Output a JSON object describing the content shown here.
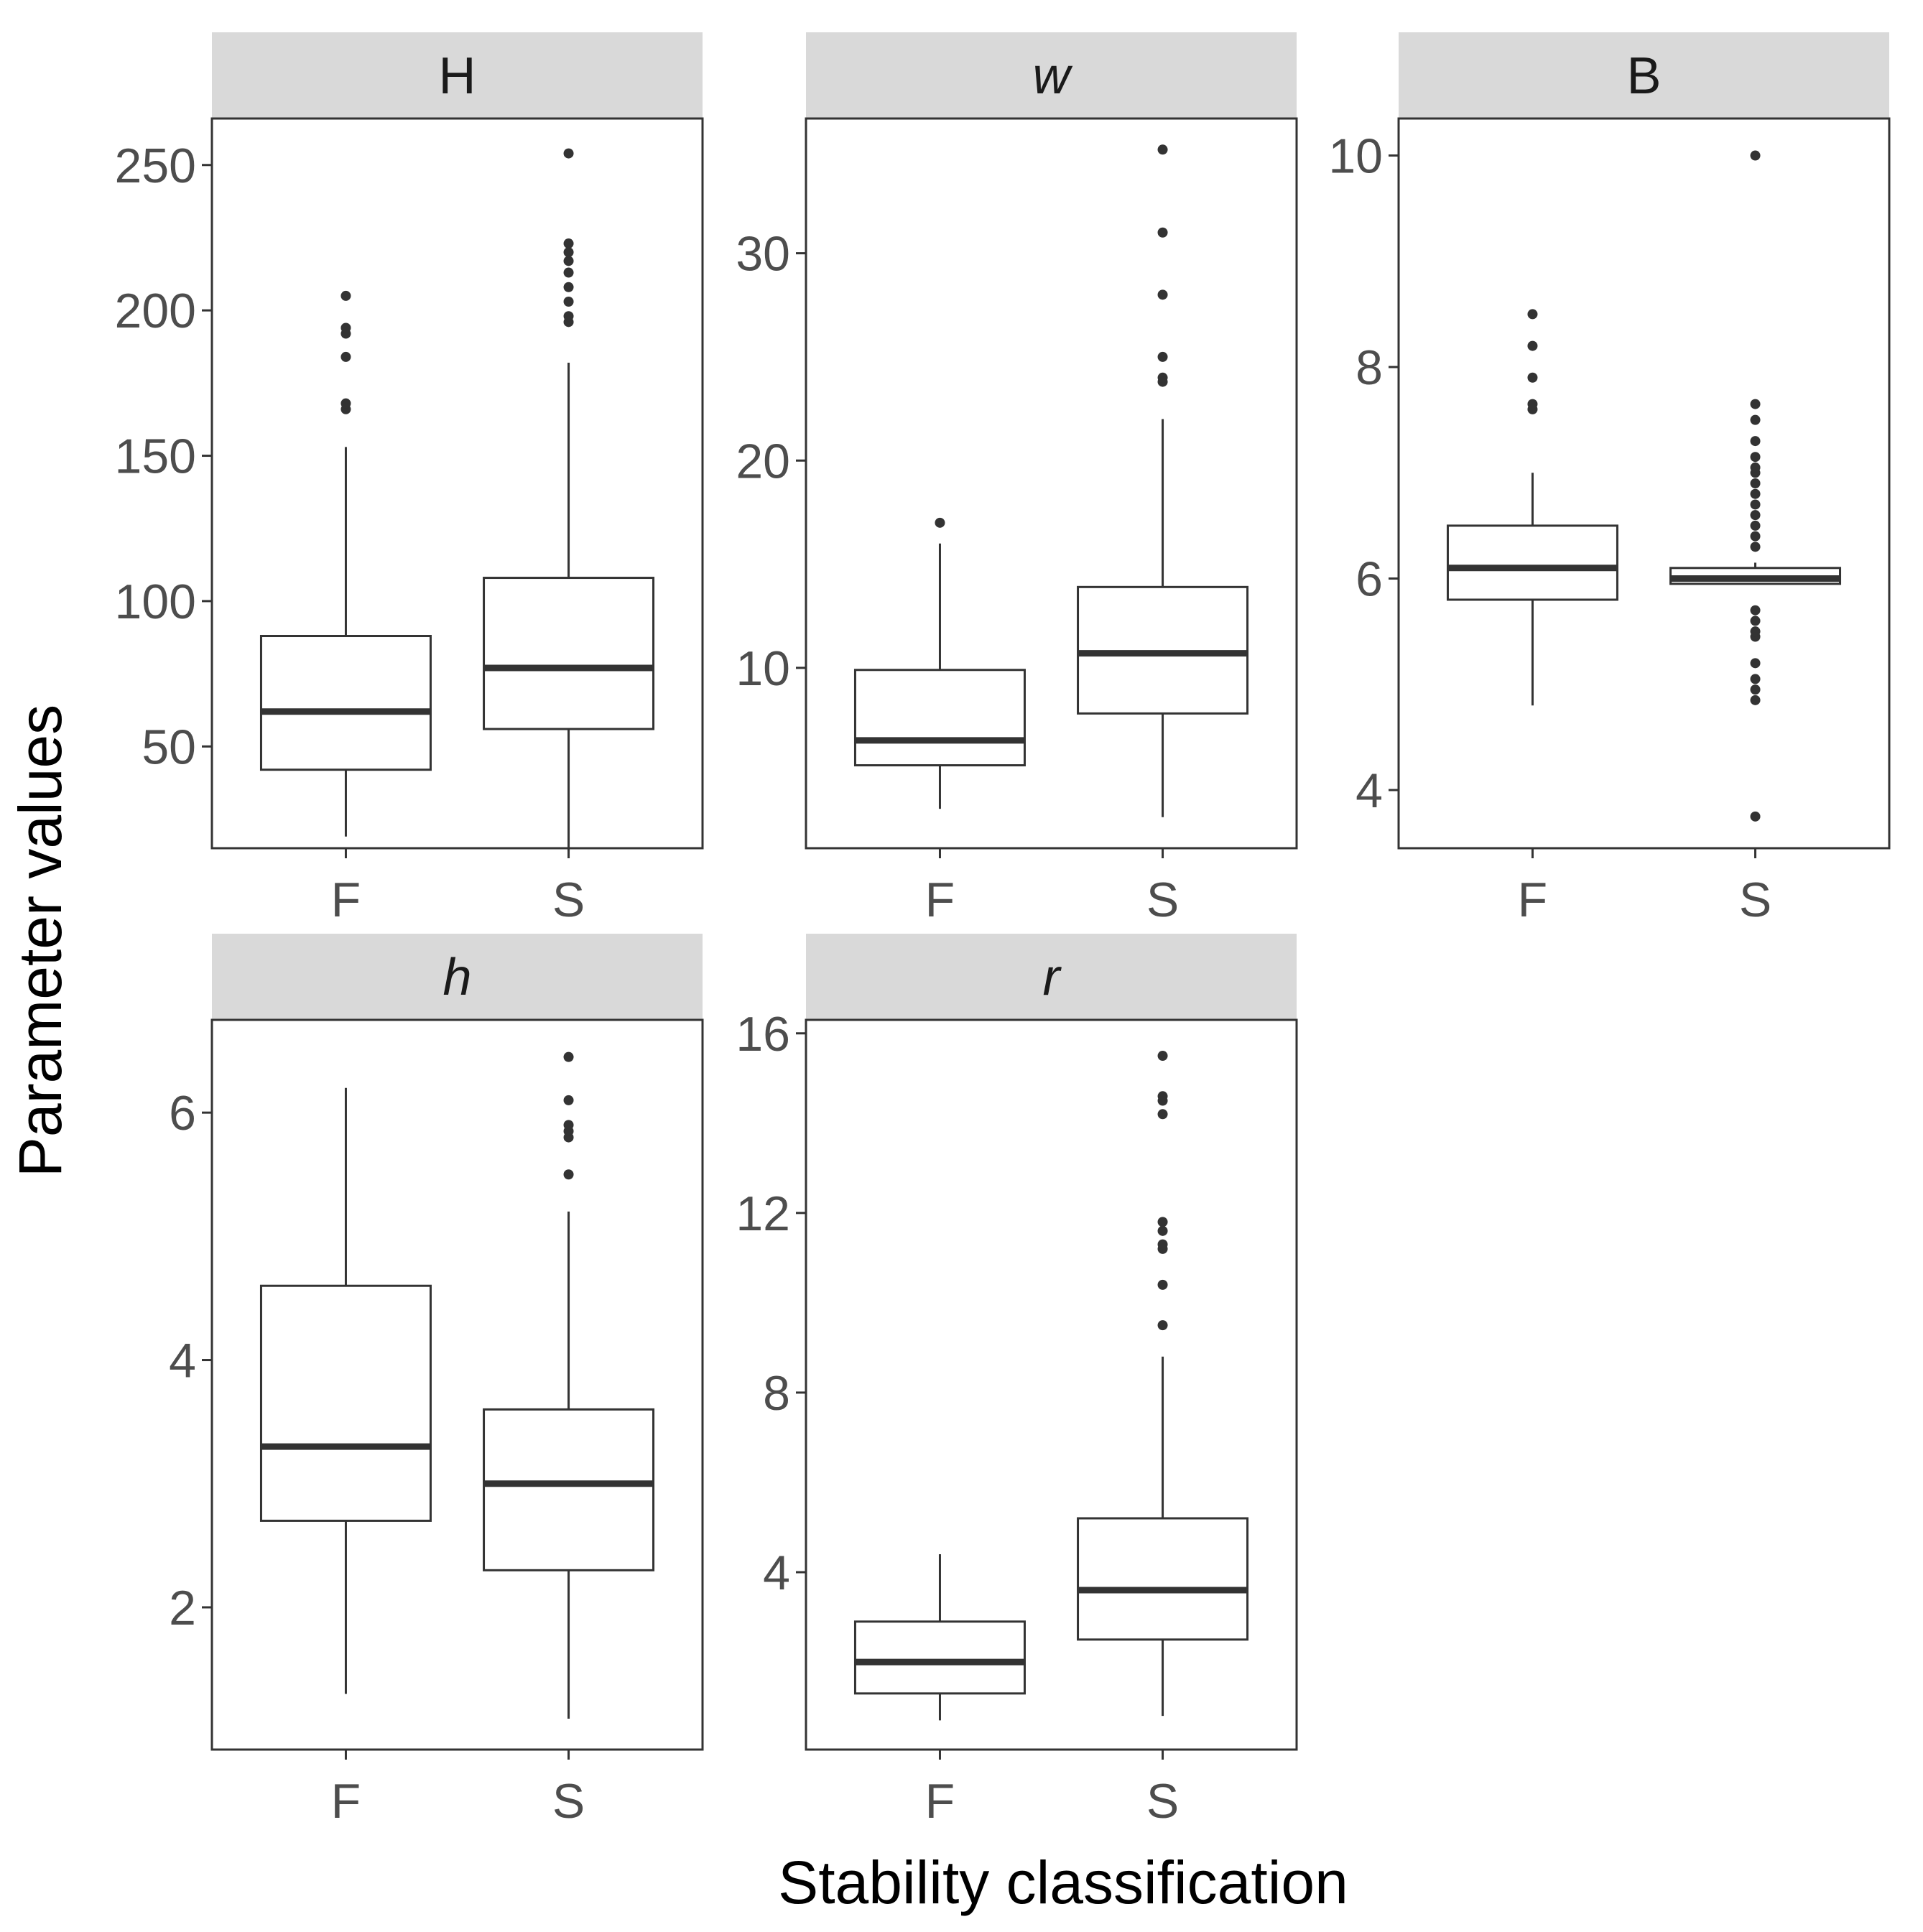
{
  "chart_data": {
    "type": "boxplot",
    "xlabel": "Stability classification",
    "ylabel": "Parameter values",
    "categories": [
      "F",
      "S"
    ],
    "panels": [
      {
        "id": "H",
        "label": "H",
        "italic": false,
        "ylim": [
          15,
          266
        ],
        "ticks": [
          50,
          100,
          150,
          200,
          250
        ],
        "boxes": [
          {
            "category": "F",
            "min": 19,
            "q1": 42,
            "median": 62,
            "q3": 88,
            "max": 153,
            "outliers": [
              166,
              168,
              184,
              192,
              194,
              205
            ]
          },
          {
            "category": "S",
            "min": 14,
            "q1": 56,
            "median": 77,
            "q3": 108,
            "max": 182,
            "outliers": [
              196,
              198,
              203,
              208,
              213,
              217,
              220,
              223,
              254
            ]
          }
        ]
      },
      {
        "id": "w",
        "label": "w",
        "italic": true,
        "ylim": [
          1.3,
          36.5
        ],
        "ticks": [
          10,
          20,
          30
        ],
        "boxes": [
          {
            "category": "F",
            "min": 3.2,
            "q1": 5.3,
            "median": 6.5,
            "q3": 9.9,
            "max": 16.0,
            "outliers": [
              17.0
            ]
          },
          {
            "category": "S",
            "min": 2.8,
            "q1": 7.8,
            "median": 10.7,
            "q3": 13.9,
            "max": 22.0,
            "outliers": [
              23.8,
              24.0,
              25.0,
              28.0,
              31.0,
              35.0
            ]
          }
        ]
      },
      {
        "id": "B",
        "label": "B",
        "italic": false,
        "ylim": [
          3.45,
          10.35
        ],
        "ticks": [
          4,
          6,
          8,
          10
        ],
        "boxes": [
          {
            "category": "F",
            "min": 4.8,
            "q1": 5.8,
            "median": 6.1,
            "q3": 6.5,
            "max": 7.0,
            "outliers": [
              7.6,
              7.65,
              7.9,
              8.2,
              8.5
            ]
          },
          {
            "category": "S",
            "min": 5.95,
            "q1": 5.95,
            "median": 6.0,
            "q3": 6.1,
            "max": 6.15,
            "outliers": [
              3.75,
              4.85,
              4.95,
              5.05,
              5.2,
              5.45,
              5.5,
              5.6,
              5.7,
              6.3,
              6.4,
              6.5,
              6.6,
              6.7,
              6.8,
              6.9,
              7.0,
              7.05,
              7.15,
              7.3,
              7.5,
              7.65,
              10.0
            ]
          }
        ]
      },
      {
        "id": "h",
        "label": "h",
        "italic": true,
        "ylim": [
          0.85,
          6.75
        ],
        "ticks": [
          2,
          4,
          6
        ],
        "boxes": [
          {
            "category": "F",
            "min": 1.3,
            "q1": 2.7,
            "median": 3.3,
            "q3": 4.6,
            "max": 6.2,
            "outliers": []
          },
          {
            "category": "S",
            "min": 1.1,
            "q1": 2.3,
            "median": 3.0,
            "q3": 3.6,
            "max": 5.2,
            "outliers": [
              5.5,
              5.8,
              5.85,
              5.9,
              6.1,
              6.45
            ]
          }
        ]
      },
      {
        "id": "r",
        "label": "r",
        "italic": true,
        "ylim": [
          0.05,
          16.3
        ],
        "ticks": [
          4,
          8,
          12,
          16
        ],
        "boxes": [
          {
            "category": "F",
            "min": 0.7,
            "q1": 1.3,
            "median": 2.0,
            "q3": 2.9,
            "max": 4.4,
            "outliers": []
          },
          {
            "category": "S",
            "min": 0.8,
            "q1": 2.5,
            "median": 3.6,
            "q3": 5.2,
            "max": 8.8,
            "outliers": [
              9.5,
              10.4,
              11.2,
              11.3,
              11.6,
              11.8,
              14.2,
              14.5,
              14.6,
              15.5
            ]
          }
        ]
      }
    ]
  }
}
